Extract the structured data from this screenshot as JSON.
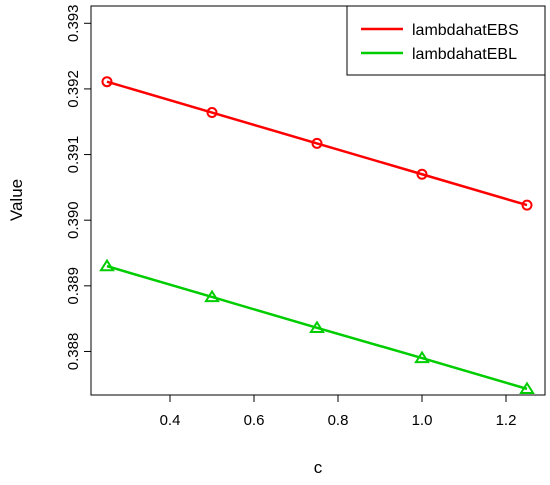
{
  "chart_data": {
    "type": "line",
    "xlabel": "c",
    "ylabel": "Value",
    "x": [
      0.25,
      0.5,
      0.75,
      1.0,
      1.25
    ],
    "xlim": [
      0.25,
      1.25
    ],
    "ylim": [
      0.38755,
      0.39305
    ],
    "xticks": [
      0.4,
      0.6,
      0.8,
      1.0,
      1.2
    ],
    "xtick_labels": [
      "0.4",
      "0.6",
      "0.8",
      "1.0",
      "1.2"
    ],
    "yticks": [
      0.388,
      0.389,
      0.39,
      0.391,
      0.392,
      0.393
    ],
    "ytick_labels": [
      "0.388",
      "0.389",
      "0.390",
      "0.391",
      "0.392",
      "0.393"
    ],
    "grid": false,
    "legend_position": "top-right",
    "series": [
      {
        "name": "lambdahatEBS",
        "color": "#ff0000",
        "marker": "circle",
        "values": [
          0.39211,
          0.39164,
          0.39117,
          0.3907,
          0.39023
        ]
      },
      {
        "name": "lambdahatEBL",
        "color": "#00cd00",
        "marker": "triangle",
        "values": [
          0.3893,
          0.38883,
          0.38836,
          0.3879,
          0.38743
        ]
      }
    ]
  }
}
